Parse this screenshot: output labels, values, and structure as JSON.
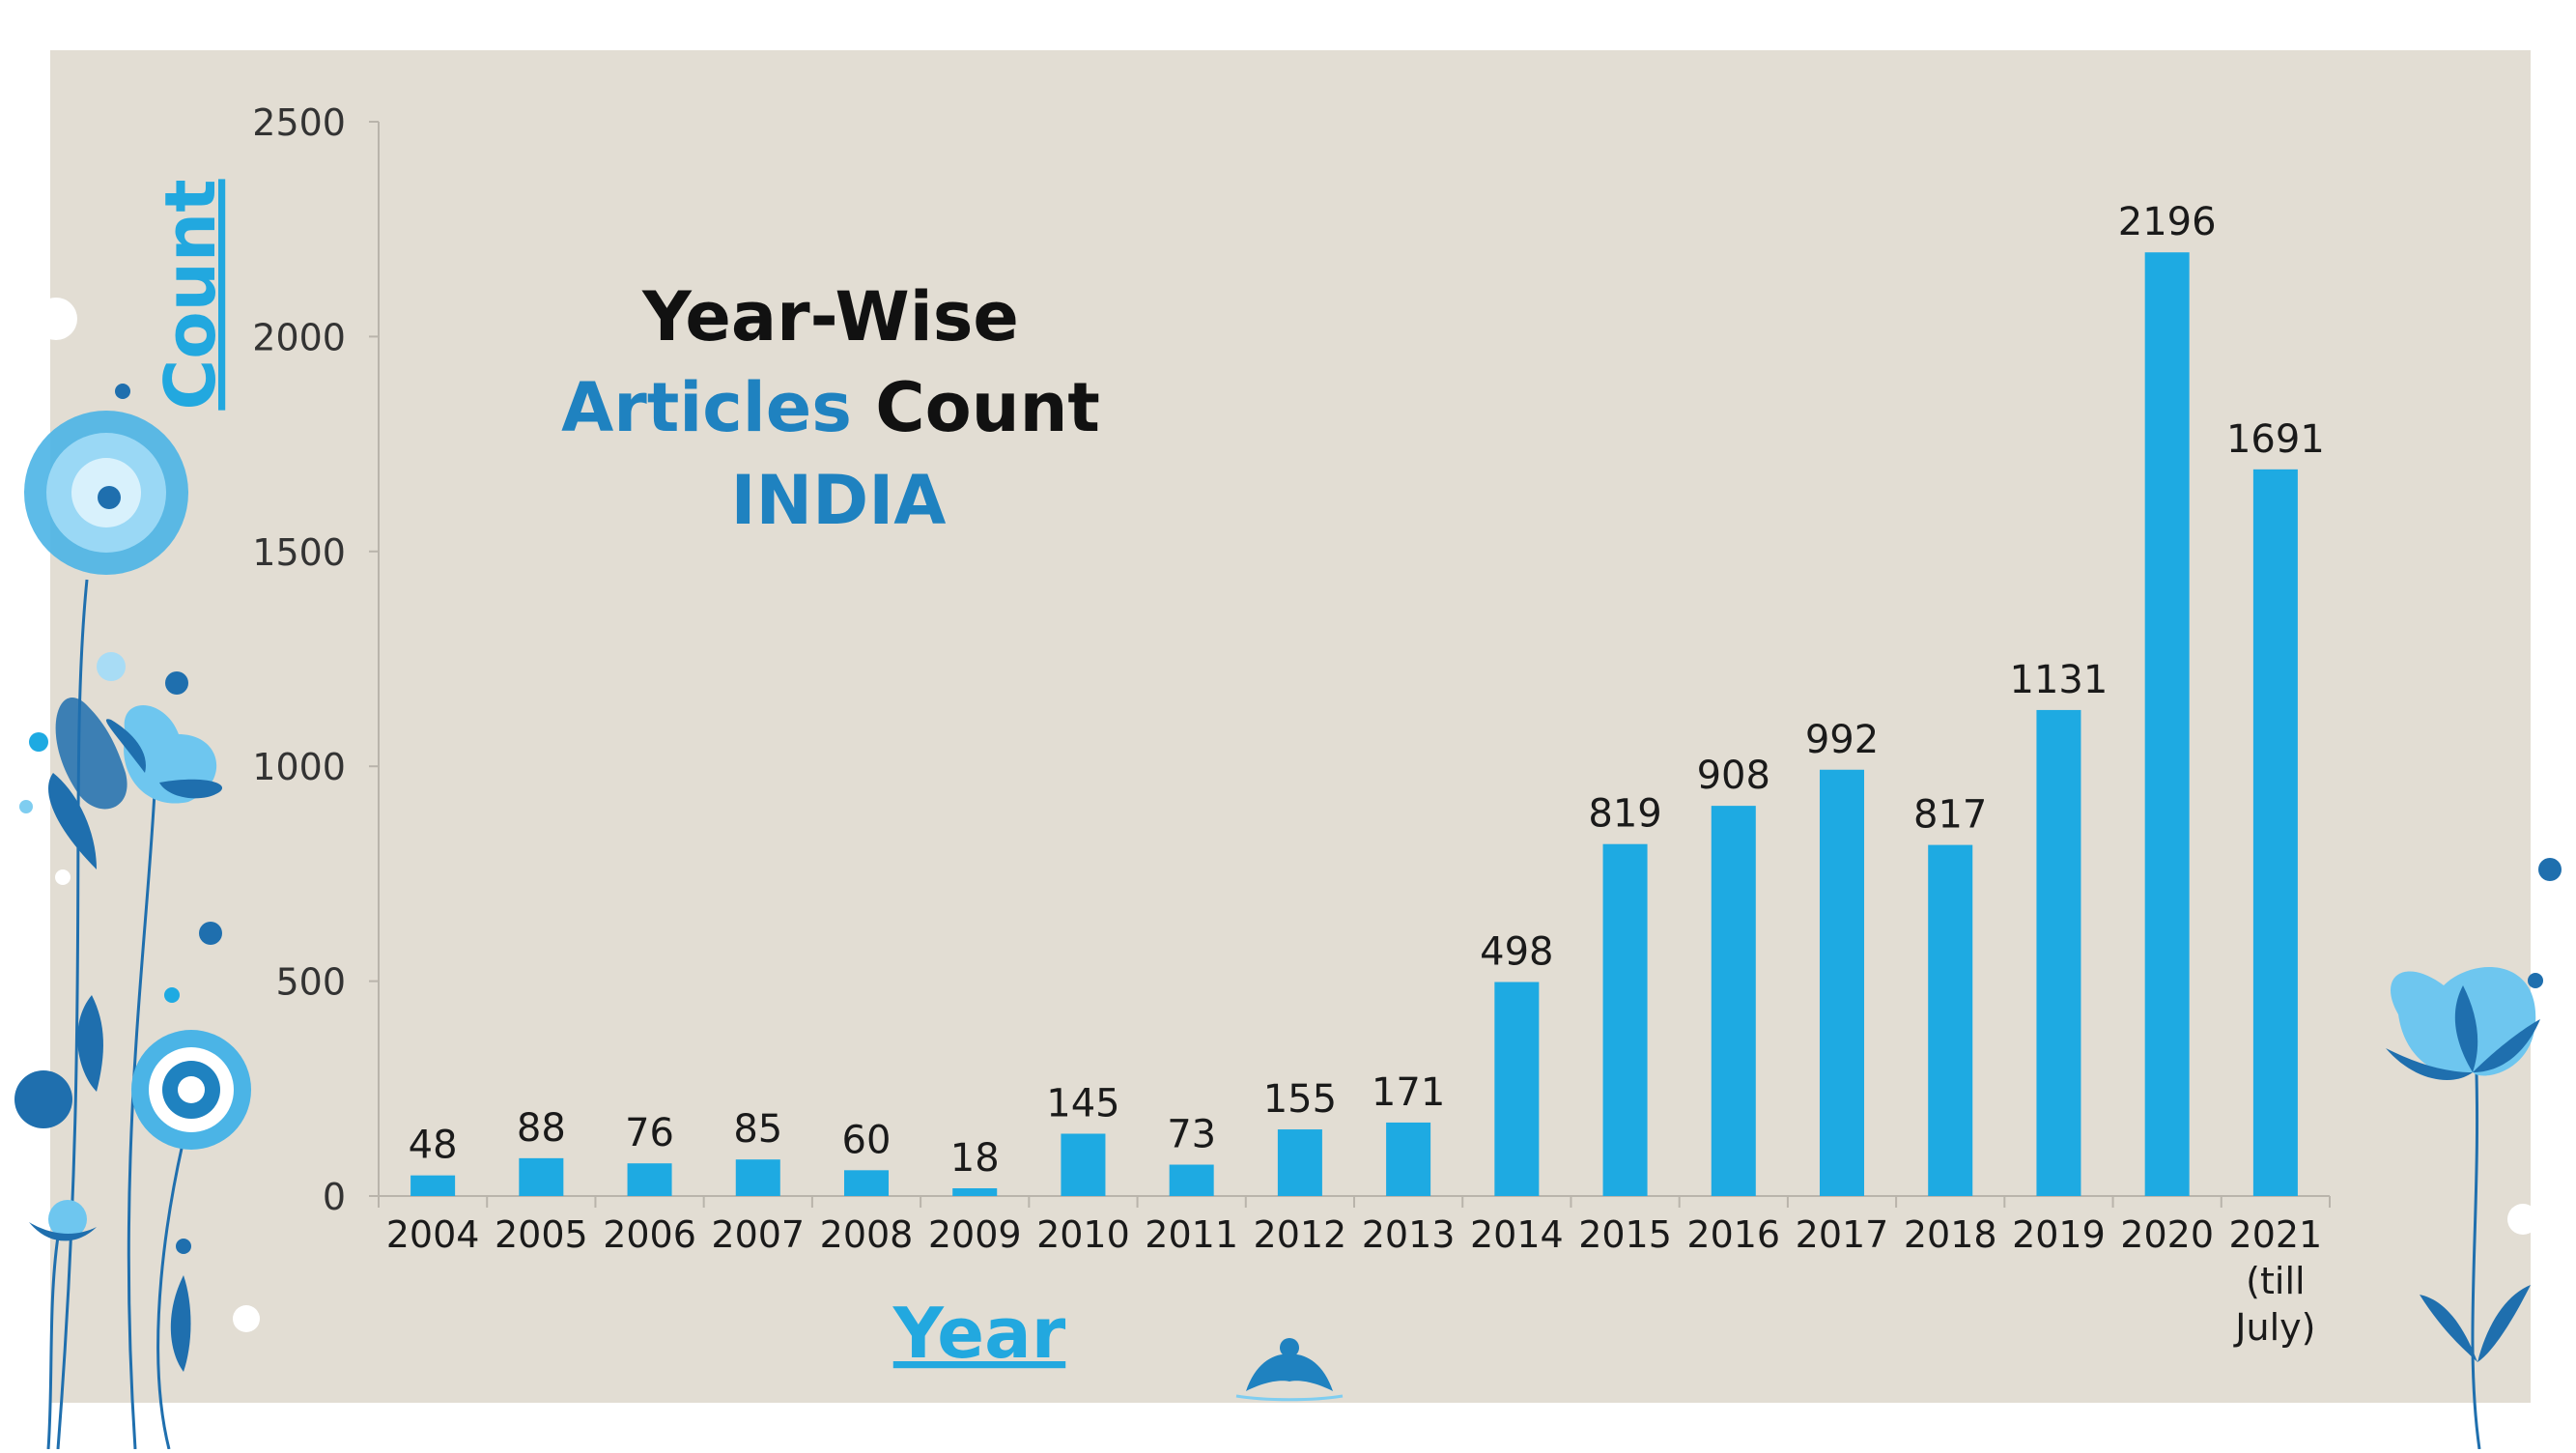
{
  "colors": {
    "background": "#e2ddd3",
    "bar": "#1eaae2",
    "title_black": "#111111",
    "title_blue": "#1f82c0",
    "axis_label": "#22a8df",
    "flower_light": "#7fcdf0",
    "flower_dark": "#1f6fae"
  },
  "title": {
    "line1": "Year-Wise",
    "line2_blue": "Articles",
    "line2_black": "Count",
    "line3": "INDIA"
  },
  "chart_data": {
    "type": "bar",
    "categories": [
      "2004",
      "2005",
      "2006",
      "2007",
      "2008",
      "2009",
      "2010",
      "2011",
      "2012",
      "2013",
      "2014",
      "2015",
      "2016",
      "2017",
      "2018",
      "2019",
      "2020",
      "2021 (till July)"
    ],
    "category_lines": [
      [
        "2004"
      ],
      [
        "2005"
      ],
      [
        "2006"
      ],
      [
        "2007"
      ],
      [
        "2008"
      ],
      [
        "2009"
      ],
      [
        "2010"
      ],
      [
        "2011"
      ],
      [
        "2012"
      ],
      [
        "2013"
      ],
      [
        "2014"
      ],
      [
        "2015"
      ],
      [
        "2016"
      ],
      [
        "2017"
      ],
      [
        "2018"
      ],
      [
        "2019"
      ],
      [
        "2020"
      ],
      [
        "2021",
        "(till",
        "July)"
      ]
    ],
    "values": [
      48,
      88,
      76,
      85,
      60,
      18,
      145,
      73,
      155,
      171,
      498,
      819,
      908,
      992,
      817,
      1131,
      2196,
      1691
    ],
    "data_labels": [
      "48",
      "88",
      "76",
      "85",
      "60",
      "18",
      "145",
      "73",
      "155",
      "171",
      "498",
      "819",
      "908",
      "992",
      "817",
      "1131",
      "2196",
      "1691"
    ],
    "xlabel": "Year",
    "ylabel": "Count",
    "ylim": [
      0,
      2500
    ],
    "yticks": [
      0,
      500,
      1000,
      1500,
      2000,
      2500
    ],
    "ytick_labels": [
      "0",
      "500",
      "1000",
      "1500",
      "2000",
      "2500"
    ],
    "grid": false,
    "legend": "none"
  }
}
